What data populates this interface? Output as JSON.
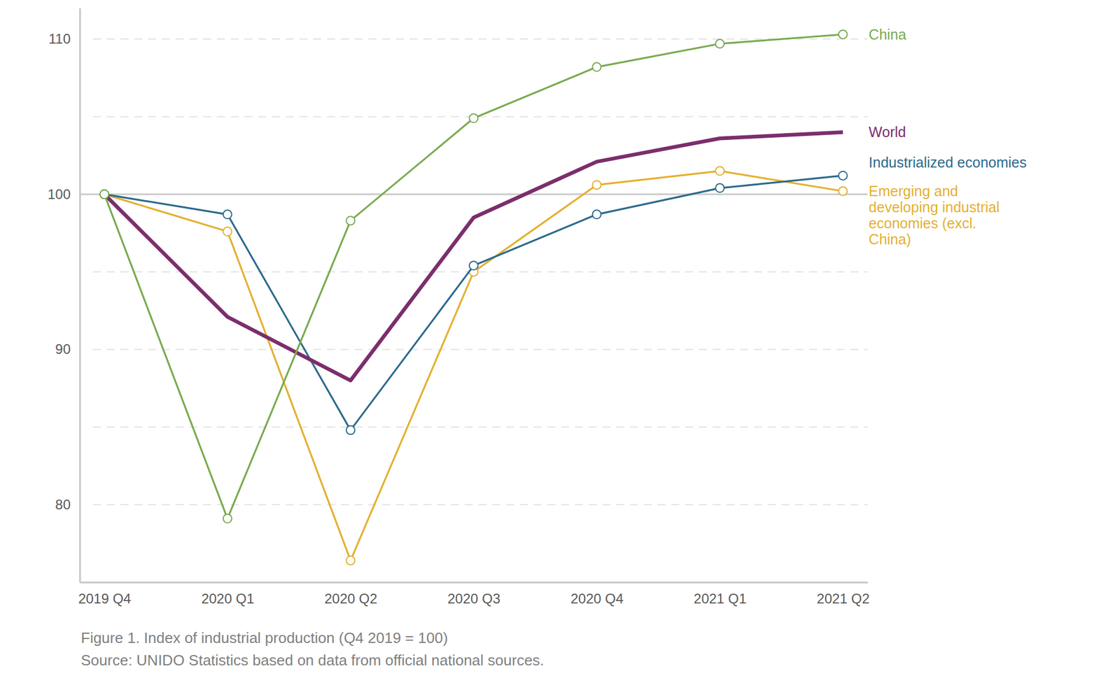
{
  "chart_data": {
    "type": "line",
    "title": "Figure 1. Index of industrial production (Q4 2019 = 100)",
    "source": "Source: UNIDO Statistics based on data from official national sources.",
    "categories": [
      "2019 Q4",
      "2020 Q1",
      "2020 Q2",
      "2020 Q3",
      "2020 Q4",
      "2021 Q1",
      "2021 Q2"
    ],
    "series": [
      {
        "name": "China",
        "color": "#79aa4f",
        "marker": "circle",
        "line_style": "solid",
        "values": [
          100,
          79.1,
          98.3,
          104.9,
          108.2,
          109.7,
          110.3
        ]
      },
      {
        "name": "World",
        "color": "#7b2e6c",
        "marker": "none",
        "line_style": "solid",
        "values": [
          100,
          92.1,
          88.0,
          98.5,
          102.1,
          103.6,
          104.0
        ]
      },
      {
        "name": "Industrialized economies",
        "color": "#2c6a8c",
        "marker": "circle",
        "line_style": "solid",
        "values": [
          100,
          98.7,
          84.8,
          95.4,
          98.7,
          100.4,
          101.2
        ]
      },
      {
        "name": "Emerging and developing industrial economies (excl. China)",
        "color": "#e4b02f",
        "marker": "circle",
        "line_style": "solid",
        "values": [
          100,
          97.6,
          76.4,
          95.0,
          100.6,
          101.5,
          100.2
        ]
      }
    ],
    "ylim": [
      75,
      112
    ],
    "yticks": [
      80,
      90,
      100,
      110
    ],
    "minor_yticks": [
      85,
      95,
      105
    ],
    "baseline": 100,
    "grid": true
  }
}
